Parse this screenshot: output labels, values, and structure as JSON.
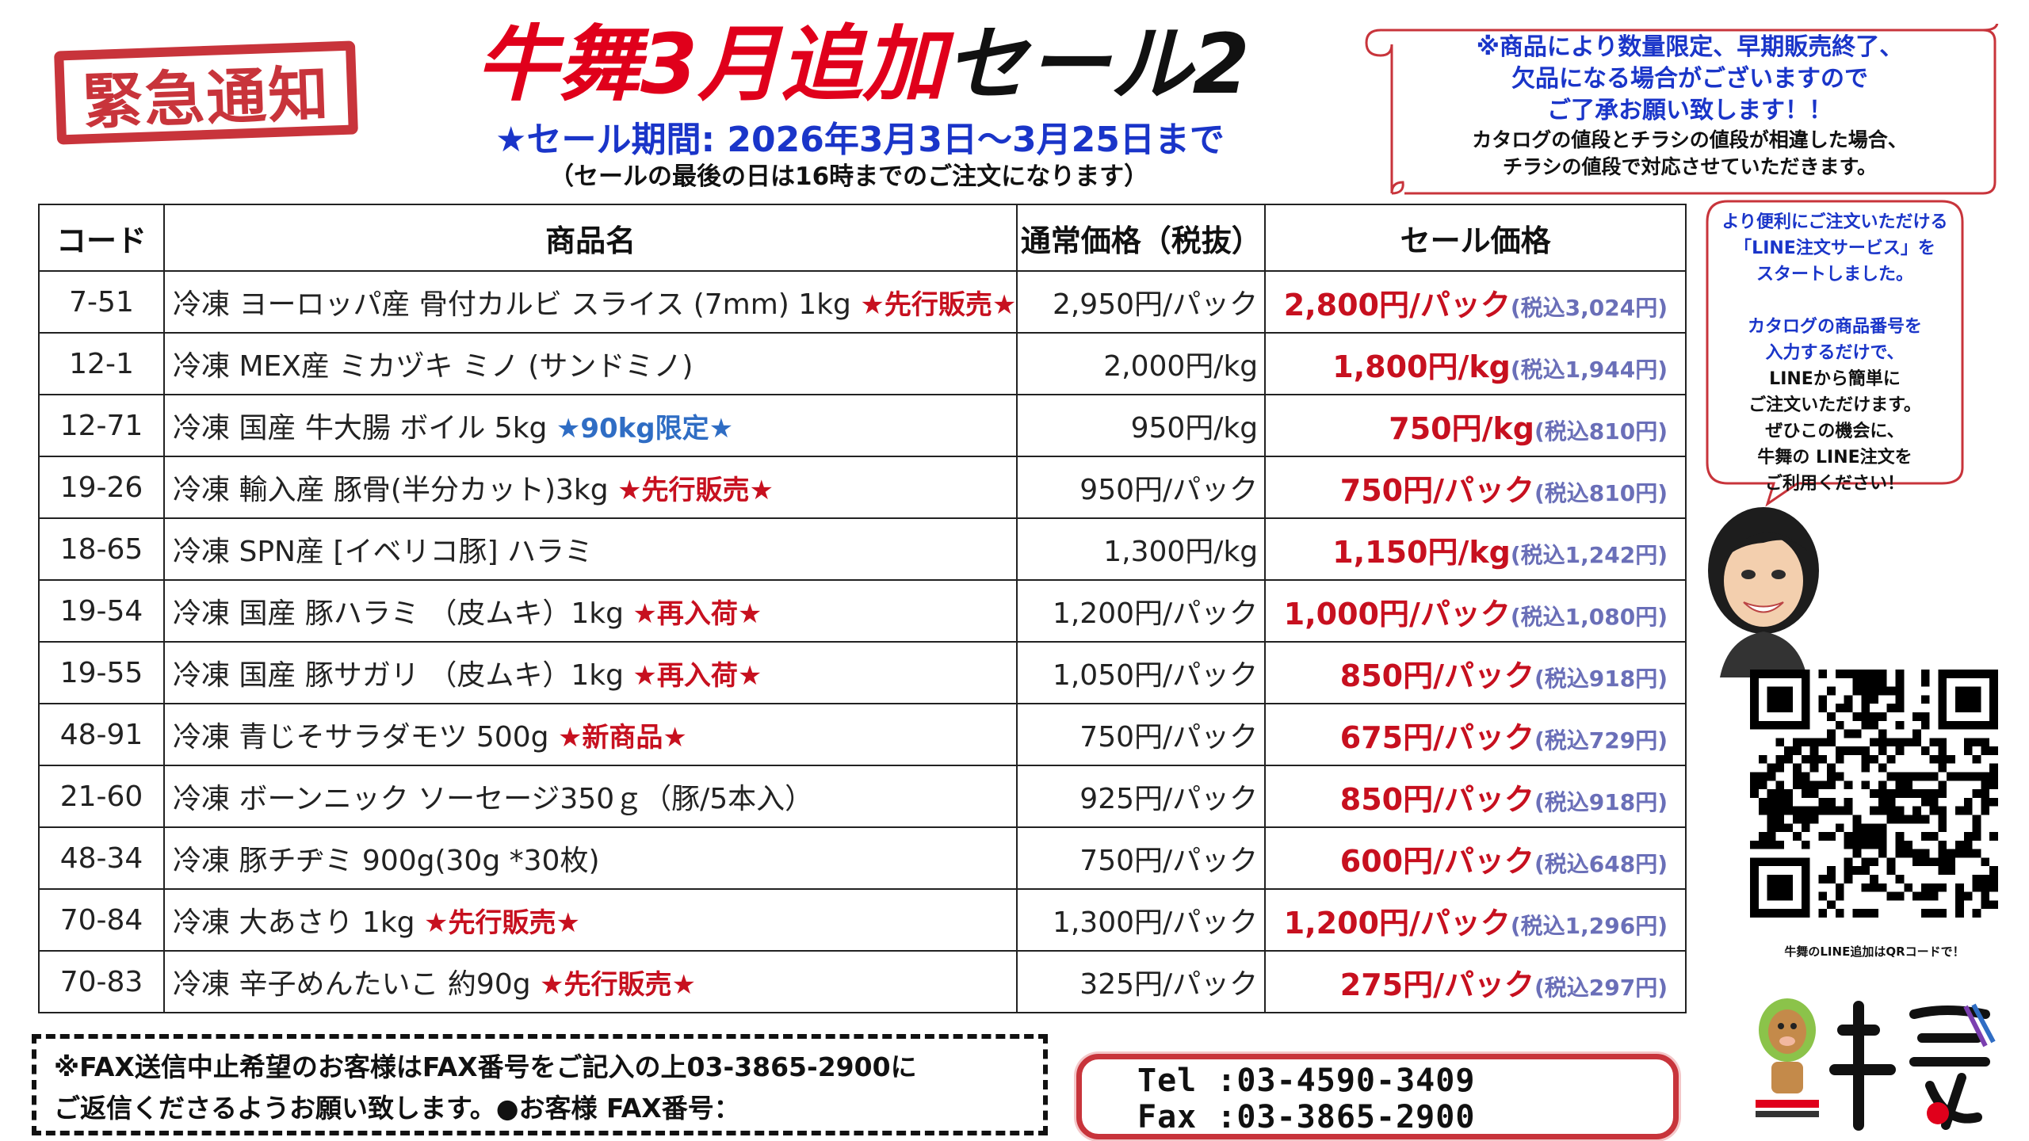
{
  "stamp": {
    "text": "緊急通知"
  },
  "title": {
    "red": "牛舞3月追加",
    "black": "セール2"
  },
  "period": "★セール期間: 2026年3月3日～3月25日まで",
  "period_note": "（セールの最後の日は16時までのご注文になります）",
  "notice": {
    "line1": "※商品により数量限定、早期販売終了、",
    "line2": "欠品になる場合がございますので",
    "line3": "ご了承お願い致します！！",
    "line4": "カタログの値段とチラシの値段が相違した場合、",
    "line5": "チラシの値段で対応させていただきます。"
  },
  "table": {
    "headers": {
      "code": "コード",
      "name": "商品名",
      "regular": "通常価格（税抜）",
      "sale": "セール価格"
    },
    "rows": [
      {
        "code": "7-51",
        "name": "冷凍 ヨーロッパ産 骨付カルビ スライス (7mm) 1kg",
        "tag": "★先行販売★",
        "regular": "2,950円/パック",
        "sale": "2,800円/パック",
        "tax": "(税込3,024円)"
      },
      {
        "code": "12-1",
        "name": "冷凍 MEX産 ミカヅキ ミノ (サンドミノ)",
        "tag": "",
        "regular": "2,000円/kg",
        "sale": "1,800円/kg",
        "tax": "(税込1,944円)"
      },
      {
        "code": "12-71",
        "name": "冷凍 国産 牛大腸 ボイル 5kg",
        "tag": "★90kg限定★",
        "regular": "950円/kg",
        "sale": "750円/kg",
        "tax": "(税込810円)"
      },
      {
        "code": "19-26",
        "name": "冷凍 輸入産 豚骨(半分カット)3kg",
        "tag": "★先行販売★",
        "regular": "950円/パック",
        "sale": "750円/パック",
        "tax": "(税込810円)"
      },
      {
        "code": "18-65",
        "name": "冷凍 SPN産 [イベリコ豚] ハラミ",
        "tag": "",
        "regular": "1,300円/kg",
        "sale": "1,150円/kg",
        "tax": "(税込1,242円)"
      },
      {
        "code": "19-54",
        "name": "冷凍 国産 豚ハラミ （皮ムキ）1kg",
        "tag": "★再入荷★",
        "regular": "1,200円/パック",
        "sale": "1,000円/パック",
        "tax": "(税込1,080円)"
      },
      {
        "code": "19-55",
        "name": "冷凍 国産 豚サガリ （皮ムキ）1kg",
        "tag": "★再入荷★",
        "regular": "1,050円/パック",
        "sale": "850円/パック",
        "tax": "(税込918円)"
      },
      {
        "code": "48-91",
        "name": "冷凍 青じそサラダモツ 500g",
        "tag": "★新商品★",
        "regular": "750円/パック",
        "sale": "675円/パック",
        "tax": "(税込729円)"
      },
      {
        "code": "21-60",
        "name": "冷凍 ボーンニック ソーセージ350ｇ（豚/5本入）",
        "tag": "",
        "regular": "925円/パック",
        "sale": "850円/パック",
        "tax": "(税込918円)"
      },
      {
        "code": "48-34",
        "name": "冷凍 豚チヂミ 900g(30g *30枚)",
        "tag": "",
        "regular": "750円/パック",
        "sale": "600円/パック",
        "tax": "(税込648円)"
      },
      {
        "code": "70-84",
        "name": "冷凍 大あさり 1kg",
        "tag": "★先行販売★",
        "regular": "1,300円/パック",
        "sale": "1,200円/パック",
        "tax": "(税込1,296円)"
      },
      {
        "code": "70-83",
        "name": "冷凍 辛子めんたいこ 約90g",
        "tag": "★先行販売★",
        "regular": "325円/パック",
        "sale": "275円/パック",
        "tax": "(税込297円)"
      }
    ]
  },
  "tag_colors": {
    "★90kg限定★": "#2f6dc4",
    "default": "#c7101f"
  },
  "bubble": {
    "l1": "より便利にご注文いただける",
    "l2": "「LINE注文サービス」を",
    "l3": "スタートしました。",
    "l4": "カタログの商品番号を",
    "l5": "入力するだけで、",
    "l6": "LINEから簡単に",
    "l7": "ご注文いただけます。",
    "l8": "ぜひこの機会に、",
    "l9": "牛舞の LINE注文を",
    "l10": "ご利用ください！"
  },
  "qr_caption": "牛舞のLINE追加はQRコードで！",
  "fax_notice": {
    "line1": "※FAX送信中止希望のお客様はFAX番号をご記入の上03-3865-2900に",
    "line2": "ご返信くださるようお願い致します。●お客様 FAX番号："
  },
  "contact": {
    "tel": "Tel :03-4590-3409",
    "fax": "Fax :03-3865-2900"
  }
}
